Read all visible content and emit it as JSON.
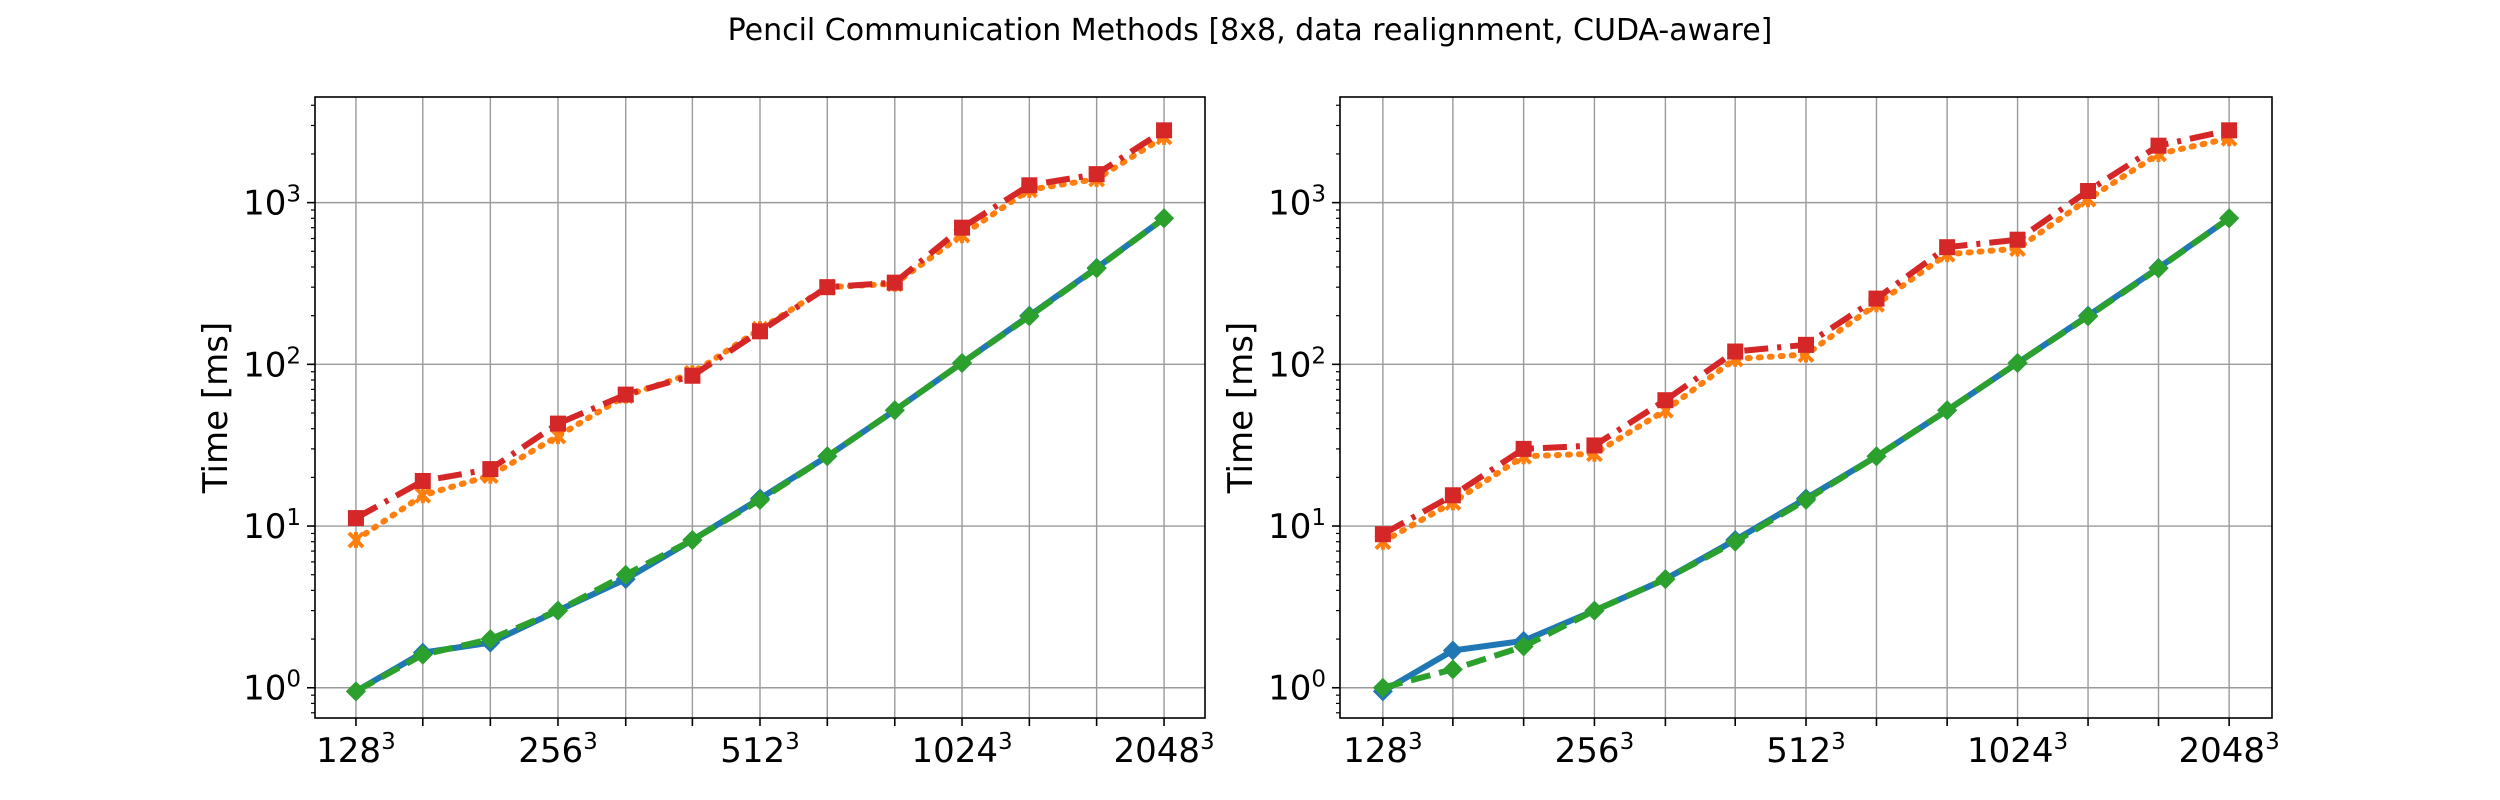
{
  "figure": {
    "title": "Pencil Communication Methods [8x8, data realignment, CUDA-aware]"
  },
  "colors": {
    "blue": "#1f77b4",
    "orange": "#ff7f0e",
    "green": "#2ca02c",
    "red": "#d62728",
    "grid": "#9a9a9a"
  },
  "chart_data": [
    {
      "type": "line",
      "title": "",
      "xlabel": "",
      "ylabel": "Time [ms]",
      "yscale": "log",
      "ylim": [
        0.65,
        4500
      ],
      "grid": true,
      "x": [
        128,
        161,
        203,
        256,
        323,
        406,
        512,
        645,
        813,
        1024,
        1290,
        1625,
        2048
      ],
      "xticks": [
        {
          "x": 128,
          "base": "128",
          "exp": "3"
        },
        {
          "x": 256,
          "base": "256",
          "exp": "3"
        },
        {
          "x": 512,
          "base": "512",
          "exp": "3"
        },
        {
          "x": 1024,
          "base": "1024",
          "exp": "3"
        },
        {
          "x": 2048,
          "base": "2048",
          "exp": "3"
        }
      ],
      "yticks": [
        {
          "y": 1,
          "base": "10",
          "exp": "0"
        },
        {
          "y": 10,
          "base": "10",
          "exp": "1"
        },
        {
          "y": 100,
          "base": "10",
          "exp": "2"
        },
        {
          "y": 1000,
          "base": "10",
          "exp": "3"
        }
      ],
      "series": [
        {
          "color": "#ff7f0e",
          "dash": "2 9",
          "marker": "x",
          "values": [
            8.2,
            15.5,
            20.5,
            36,
            64,
            88,
            165,
            300,
            315,
            630,
            1200,
            1400,
            2550
          ]
        },
        {
          "color": "#d62728",
          "dash": "24 9 4 9",
          "marker": "square",
          "values": [
            11.2,
            19,
            22.5,
            43,
            65,
            85,
            160,
            300,
            320,
            700,
            1280,
            1500,
            2800
          ]
        },
        {
          "color": "#1f77b4",
          "dash": "",
          "marker": "diamond",
          "values": [
            0.95,
            1.65,
            1.9,
            3.0,
            4.7,
            8.2,
            14.8,
            27,
            52,
            102,
            200,
            395,
            800
          ]
        },
        {
          "color": "#2ca02c",
          "dash": "20 9",
          "marker": "diamond",
          "values": [
            0.95,
            1.6,
            2.0,
            3.0,
            5.0,
            8.2,
            14.5,
            27,
            52,
            102,
            198,
            392,
            800
          ]
        }
      ]
    },
    {
      "type": "line",
      "title": "",
      "xlabel": "",
      "ylabel": "Time [ms]",
      "yscale": "log",
      "ylim": [
        0.65,
        4500
      ],
      "grid": true,
      "x": [
        128,
        161,
        203,
        256,
        323,
        406,
        512,
        645,
        813,
        1024,
        1290,
        1625,
        2048
      ],
      "xticks": [
        {
          "x": 128,
          "base": "128",
          "exp": "3"
        },
        {
          "x": 256,
          "base": "256",
          "exp": "3"
        },
        {
          "x": 512,
          "base": "512",
          "exp": "3"
        },
        {
          "x": 1024,
          "base": "1024",
          "exp": "3"
        },
        {
          "x": 2048,
          "base": "2048",
          "exp": "3"
        }
      ],
      "yticks": [
        {
          "y": 1,
          "base": "10",
          "exp": "0"
        },
        {
          "y": 10,
          "base": "10",
          "exp": "1"
        },
        {
          "y": 100,
          "base": "10",
          "exp": "2"
        },
        {
          "y": 1000,
          "base": "10",
          "exp": "3"
        }
      ],
      "series": [
        {
          "color": "#ff7f0e",
          "dash": "2 9",
          "marker": "x",
          "values": [
            8.0,
            14.0,
            27,
            28,
            52,
            108,
            115,
            235,
            480,
            520,
            1050,
            2000,
            2500
          ]
        },
        {
          "color": "#d62728",
          "dash": "24 9 4 9",
          "marker": "square",
          "values": [
            8.9,
            15.5,
            30,
            31.5,
            60,
            120,
            132,
            255,
            530,
            590,
            1180,
            2250,
            2800
          ]
        },
        {
          "color": "#1f77b4",
          "dash": "",
          "marker": "diamond",
          "values": [
            0.95,
            1.7,
            1.95,
            3.0,
            4.7,
            8.2,
            14.8,
            27,
            52,
            102,
            200,
            395,
            800
          ]
        },
        {
          "color": "#2ca02c",
          "dash": "20 9",
          "marker": "diamond",
          "values": [
            1.0,
            1.3,
            1.8,
            3.0,
            4.7,
            8.0,
            14.5,
            27,
            52,
            102,
            198,
            392,
            800
          ]
        }
      ]
    }
  ]
}
